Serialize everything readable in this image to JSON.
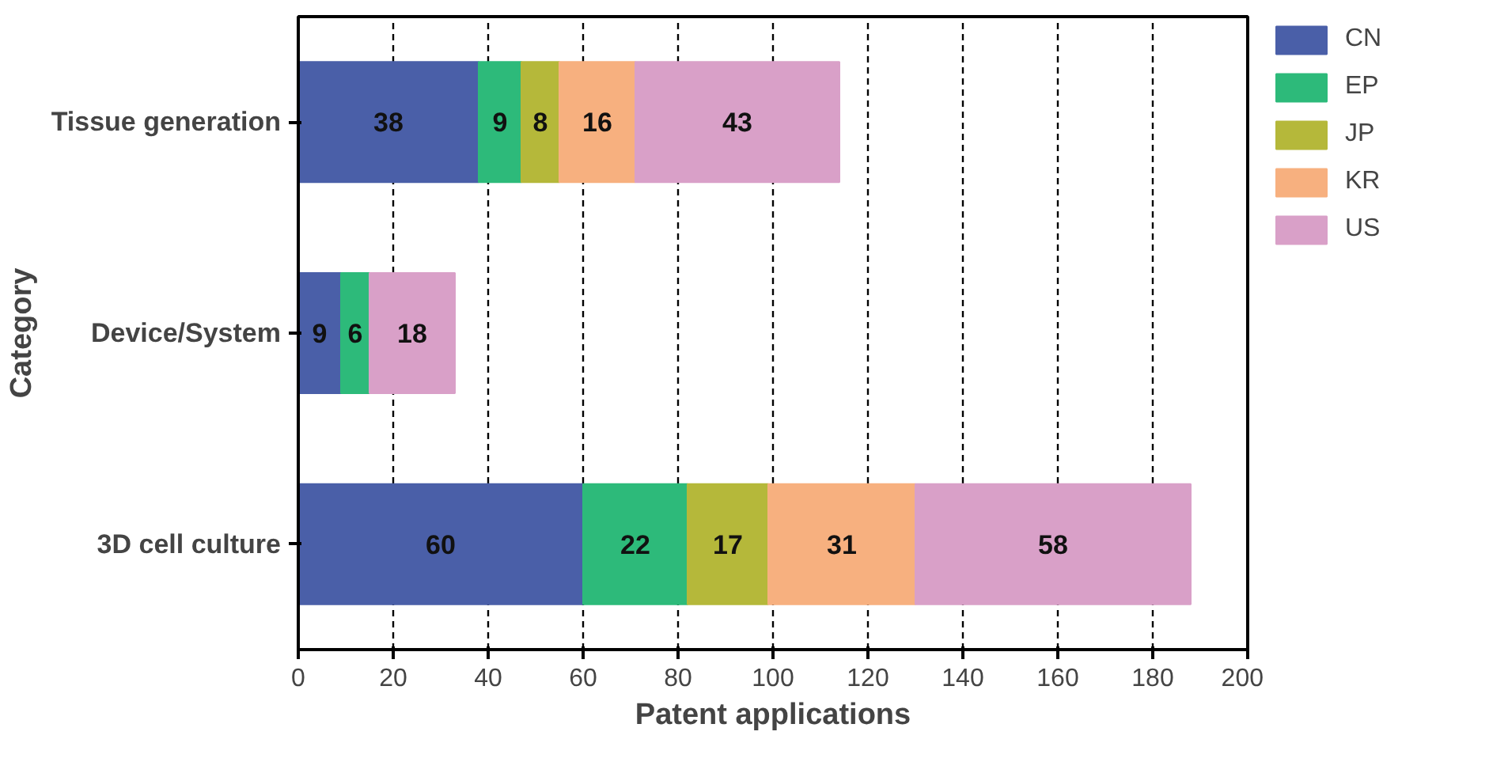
{
  "chart_data": {
    "type": "bar",
    "orientation": "horizontal",
    "stacked": true,
    "xlabel": "Patent applications",
    "ylabel": "Category",
    "categories": [
      "Tissue generation",
      "Device/System",
      "3D cell culture"
    ],
    "series": [
      {
        "name": "CN",
        "color": "#4a5fa8",
        "values": [
          38,
          9,
          60
        ]
      },
      {
        "name": "EP",
        "color": "#2dba7a",
        "values": [
          9,
          6,
          22
        ]
      },
      {
        "name": "JP",
        "color": "#b5b83a",
        "values": [
          8,
          null,
          17
        ]
      },
      {
        "name": "KR",
        "color": "#f7b07f",
        "values": [
          16,
          null,
          31
        ]
      },
      {
        "name": "US",
        "color": "#d9a0c8",
        "values": [
          43,
          18,
          58
        ]
      }
    ],
    "xlim": [
      0,
      200
    ],
    "xticks": [
      0,
      20,
      40,
      60,
      80,
      100,
      120,
      140,
      160,
      180,
      200
    ],
    "grid": "x",
    "legend": "top right",
    "data_labels": true
  }
}
